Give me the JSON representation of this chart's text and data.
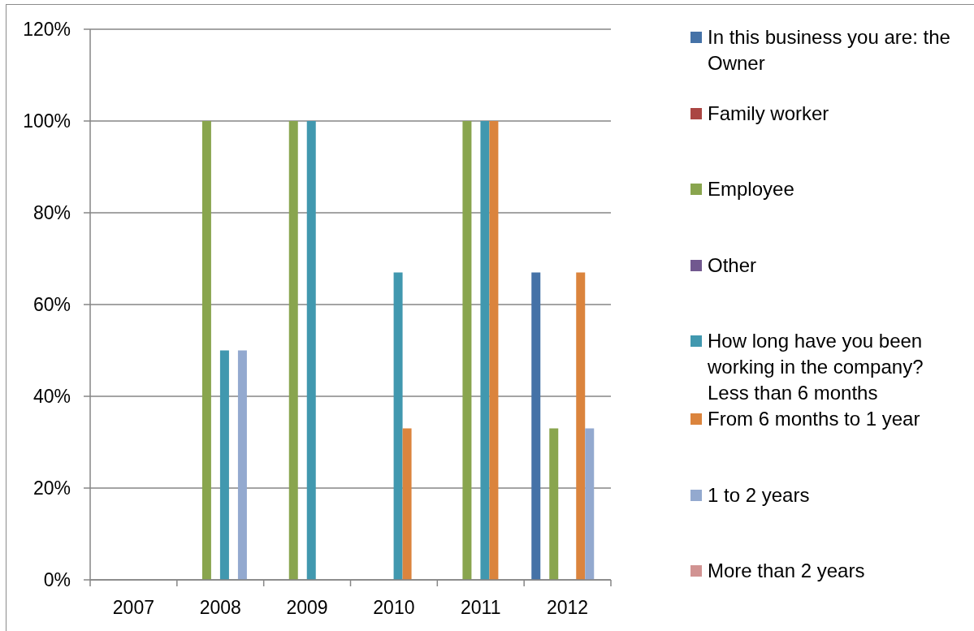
{
  "chart_data": {
    "type": "bar",
    "categories": [
      "2007",
      "2008",
      "2009",
      "2010",
      "2011",
      "2012"
    ],
    "series": [
      {
        "name": "In this business you are: the Owner",
        "color": "#4572a7",
        "values": [
          null,
          null,
          null,
          null,
          null,
          67
        ]
      },
      {
        "name": "Family worker",
        "color": "#aa4643",
        "values": [
          null,
          null,
          null,
          null,
          null,
          null
        ]
      },
      {
        "name": "Employee",
        "color": "#89a54e",
        "values": [
          null,
          100,
          100,
          null,
          100,
          33
        ]
      },
      {
        "name": "Other",
        "color": "#71588f",
        "values": [
          null,
          null,
          null,
          null,
          null,
          null
        ]
      },
      {
        "name": "How long have you been working in the company? Less than 6 months",
        "color": "#4198af",
        "values": [
          null,
          50,
          100,
          67,
          100,
          null
        ]
      },
      {
        "name": "From 6 months to 1 year",
        "color": "#db843d",
        "values": [
          null,
          null,
          null,
          33,
          100,
          67
        ]
      },
      {
        "name": "1 to 2 years",
        "color": "#93a9cf",
        "values": [
          null,
          50,
          null,
          null,
          null,
          33
        ]
      },
      {
        "name": "More than 2 years",
        "color": "#d19392",
        "values": [
          null,
          null,
          null,
          null,
          null,
          null
        ]
      }
    ],
    "ylim": [
      0,
      120
    ],
    "yticks": [
      {
        "value": 0,
        "label": "0%"
      },
      {
        "value": 20,
        "label": "20%"
      },
      {
        "value": 40,
        "label": "40%"
      },
      {
        "value": 60,
        "label": "60%"
      },
      {
        "value": 80,
        "label": "80%"
      },
      {
        "value": 100,
        "label": "100%"
      },
      {
        "value": 120,
        "label": "120%"
      }
    ],
    "grid": "y",
    "legend": "right"
  }
}
